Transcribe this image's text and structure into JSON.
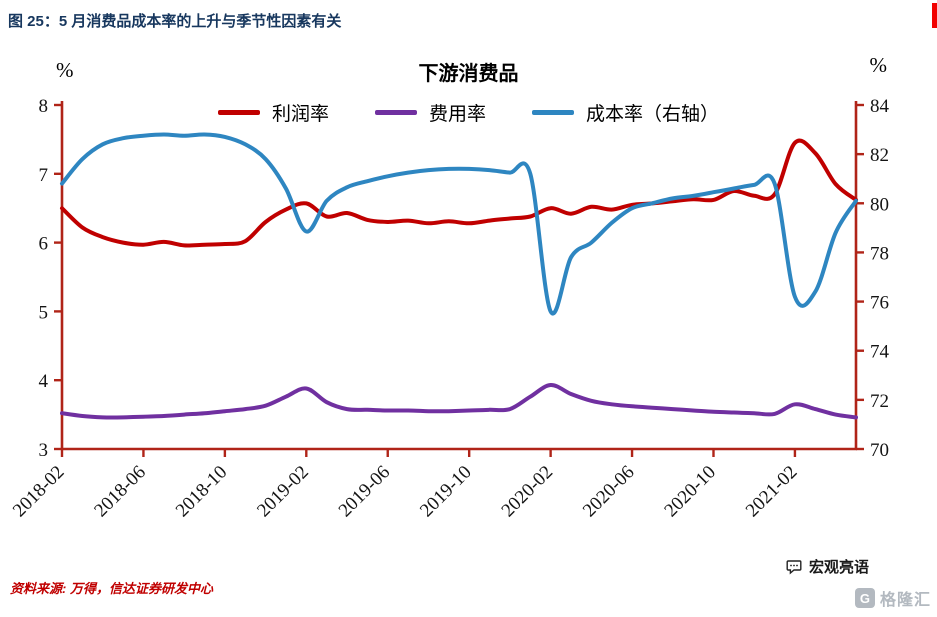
{
  "page": {
    "title": "图 25：5 月消费品成本率的上升与季节性因素有关",
    "source": "资料来源: 万得，信达证券研发中心",
    "watermark": "宏观亮语",
    "logo_glyph": "G",
    "logo_text": "格隆汇",
    "title_color": "#17375E",
    "source_color": "#C00000"
  },
  "chart_data": {
    "type": "line",
    "title": "下游消费品",
    "left_axis_unit": "%",
    "right_axis_unit": "%",
    "left_ylim": [
      3,
      8
    ],
    "left_yticks": [
      3,
      4,
      5,
      6,
      7,
      8
    ],
    "right_ylim": [
      70,
      84
    ],
    "right_yticks": [
      70,
      72,
      74,
      76,
      78,
      80,
      82,
      84
    ],
    "grid": false,
    "legend_position": "top-center",
    "axis_color": "#B02418",
    "x_tick_every": 4,
    "x_tick_labels": [
      "2018-02",
      "2018-06",
      "2018-10",
      "2019-02",
      "2019-06",
      "2019-10",
      "2020-02",
      "2020-06",
      "2020-10",
      "2021-02"
    ],
    "x": [
      "2018-02",
      "2018-03",
      "2018-04",
      "2018-05",
      "2018-06",
      "2018-07",
      "2018-08",
      "2018-09",
      "2018-10",
      "2018-11",
      "2018-12",
      "2019-01",
      "2019-02",
      "2019-03",
      "2019-04",
      "2019-05",
      "2019-06",
      "2019-07",
      "2019-08",
      "2019-09",
      "2019-10",
      "2019-11",
      "2019-12",
      "2020-01",
      "2020-02",
      "2020-03",
      "2020-04",
      "2020-05",
      "2020-06",
      "2020-07",
      "2020-08",
      "2020-09",
      "2020-10",
      "2020-11",
      "2020-12",
      "2021-01",
      "2021-02",
      "2021-03",
      "2021-04",
      "2021-05"
    ],
    "series": [
      {
        "name": "利润率",
        "axis": "left",
        "color": "#C00000",
        "values": [
          6.5,
          6.22,
          6.08,
          6.0,
          5.97,
          6.01,
          5.96,
          5.97,
          5.98,
          6.02,
          6.3,
          6.48,
          6.57,
          6.38,
          6.43,
          6.33,
          6.3,
          6.32,
          6.28,
          6.31,
          6.28,
          6.32,
          6.35,
          6.38,
          6.5,
          6.42,
          6.52,
          6.48,
          6.55,
          6.57,
          6.6,
          6.63,
          6.62,
          6.75,
          6.68,
          6.7,
          7.45,
          7.3,
          6.85,
          6.62
        ]
      },
      {
        "name": "费用率",
        "axis": "left",
        "color": "#7030A0",
        "values": [
          3.52,
          3.48,
          3.46,
          3.46,
          3.47,
          3.48,
          3.5,
          3.52,
          3.55,
          3.58,
          3.63,
          3.76,
          3.88,
          3.68,
          3.58,
          3.57,
          3.56,
          3.56,
          3.55,
          3.55,
          3.56,
          3.57,
          3.58,
          3.76,
          3.93,
          3.8,
          3.7,
          3.65,
          3.62,
          3.6,
          3.58,
          3.56,
          3.54,
          3.53,
          3.52,
          3.51,
          3.65,
          3.58,
          3.5,
          3.46
        ]
      },
      {
        "name": "成本率（右轴）",
        "axis": "right",
        "color": "#2E86C1",
        "values": [
          80.8,
          81.8,
          82.4,
          82.65,
          82.75,
          82.8,
          82.75,
          82.8,
          82.7,
          82.4,
          81.8,
          80.6,
          78.85,
          80.1,
          80.65,
          80.9,
          81.1,
          81.25,
          81.35,
          81.4,
          81.4,
          81.35,
          81.25,
          81.2,
          75.6,
          77.8,
          78.4,
          79.2,
          79.8,
          80.0,
          80.2,
          80.3,
          80.45,
          80.6,
          80.75,
          80.8,
          76.2,
          76.4,
          78.8,
          80.1
        ]
      }
    ]
  }
}
